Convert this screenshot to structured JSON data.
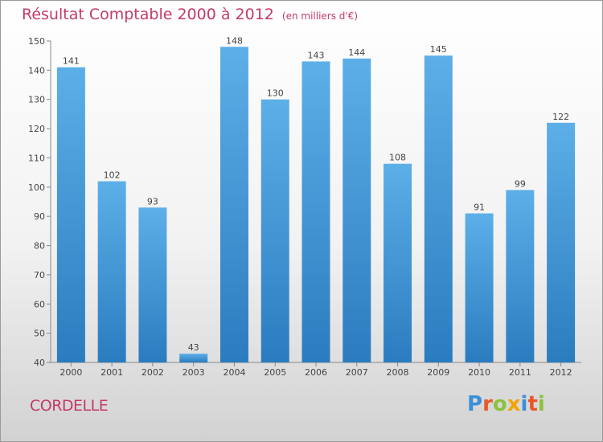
{
  "title": "Résultat Comptable 2000 à 2012",
  "subtitle": "(en milliers d'€)",
  "commune": "CORDELLE",
  "brand": {
    "letters": [
      "P",
      "r",
      "o",
      "x",
      "i",
      "t",
      "i"
    ],
    "colors": [
      "#3b8ed8",
      "#e8582a",
      "#8cc23e",
      "#f2a400",
      "#3b8ed8",
      "#e8582a",
      "#8cc23e"
    ]
  },
  "colors": {
    "title": "#c43a6a",
    "bar_top": "#5dafe8",
    "bar_bottom": "#2a7cbf"
  },
  "chart_data": {
    "type": "bar",
    "categories": [
      "2000",
      "2001",
      "2002",
      "2003",
      "2004",
      "2005",
      "2006",
      "2007",
      "2008",
      "2009",
      "2010",
      "2011",
      "2012"
    ],
    "values": [
      141,
      102,
      93,
      43,
      148,
      130,
      143,
      144,
      108,
      145,
      91,
      99,
      122
    ],
    "ylim": [
      40,
      150
    ],
    "yticks": [
      40,
      50,
      60,
      70,
      80,
      90,
      100,
      110,
      120,
      130,
      140,
      150
    ],
    "grid": false,
    "data_labels": true
  }
}
